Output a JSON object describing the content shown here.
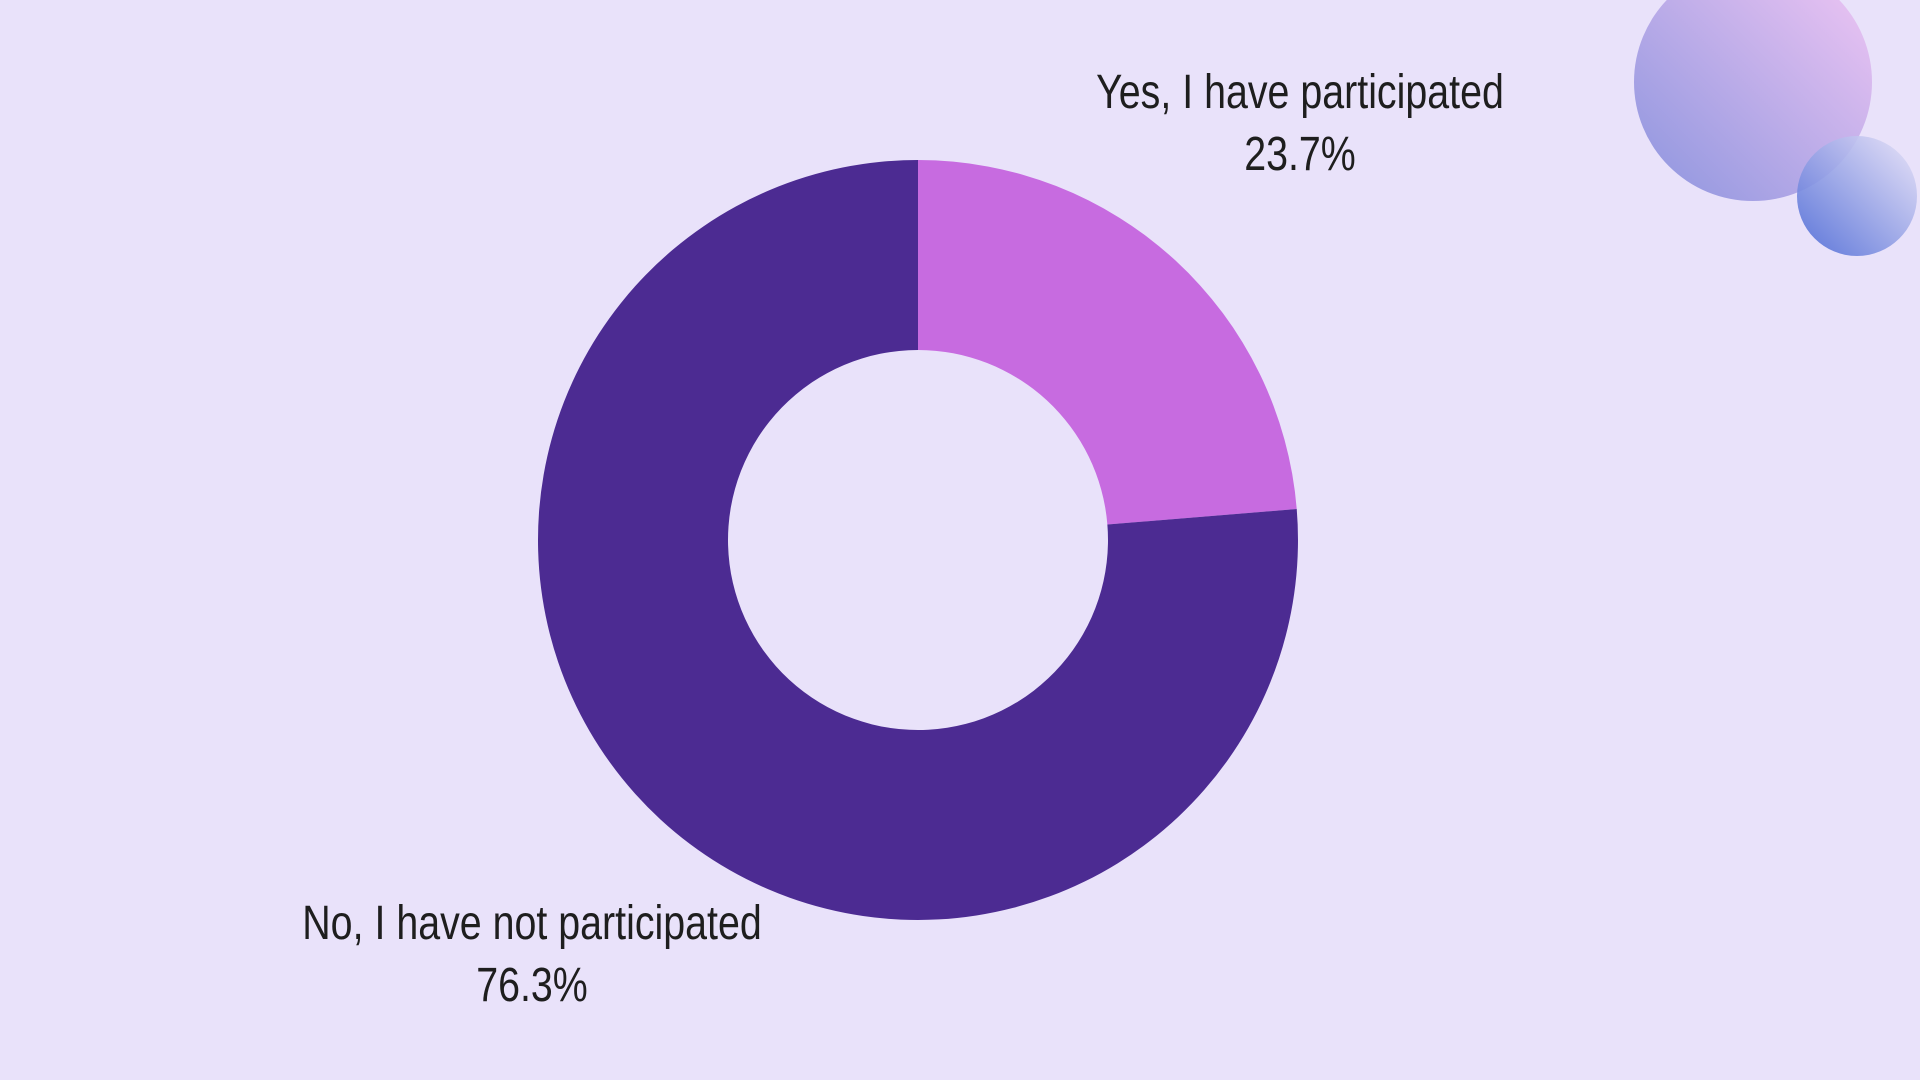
{
  "canvas": {
    "background_color": "#e9e2fa",
    "text_color": "#1e1e1e"
  },
  "chart_data": {
    "type": "pie",
    "subtype": "donut",
    "title": "",
    "legend_position": "none",
    "labels_position": "outside",
    "start_angle_deg": 0,
    "direction": "clockwise",
    "inner_radius_ratio": 0.5,
    "slices": [
      {
        "label": "Yes, I have participated",
        "value": 23.7,
        "percent_label": "23.7%",
        "color": "#c76be0"
      },
      {
        "label": "No, I have not participated",
        "value": 76.3,
        "percent_label": "76.3%",
        "color": "#4c2b92"
      }
    ]
  },
  "decorations": {
    "large_circle": {
      "gradient_from": "#8b94de",
      "gradient_to": "#f2c7f4"
    },
    "small_circle": {
      "gradient_from": "#4a68d5",
      "gradient_to": "#eae4f8"
    }
  }
}
